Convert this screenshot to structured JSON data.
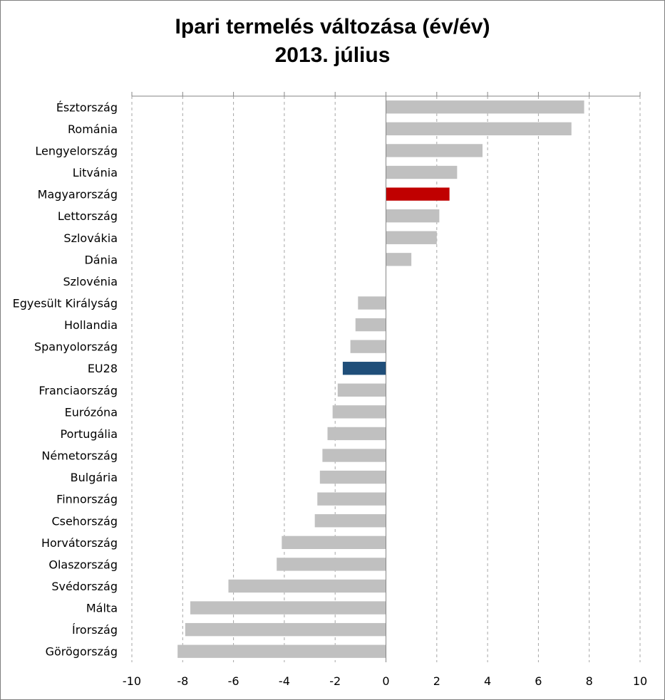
{
  "chart_data": {
    "type": "bar",
    "orientation": "horizontal",
    "title": "Ipari termelés változása (év/év)",
    "subtitle": "2013. július",
    "categories": [
      "Észtország",
      "Románia",
      "Lengyelország",
      "Litvánia",
      "Magyarország",
      "Lettország",
      "Szlovákia",
      "Dánia",
      "Szlovénia",
      "Egyesült Királyság",
      "Hollandia",
      "Spanyolország",
      "EU28",
      "Franciaország",
      "Eurózóna",
      "Portugália",
      "Németország",
      "Bulgária",
      "Finnország",
      "Csehország",
      "Horvátország",
      "Olaszország",
      "Svédország",
      "Málta",
      "Írország",
      "Görögország"
    ],
    "values": [
      7.8,
      7.3,
      3.8,
      2.8,
      2.5,
      2.1,
      2.0,
      1.0,
      0.0,
      -1.1,
      -1.2,
      -1.4,
      -1.7,
      -1.9,
      -2.1,
      -2.3,
      -2.5,
      -2.6,
      -2.7,
      -2.8,
      -4.1,
      -4.3,
      -6.2,
      -7.7,
      -7.9,
      -8.2
    ],
    "highlight": {
      "Magyarország": "#c00000",
      "EU28": "#1f4e79"
    },
    "default_color": "#c0c0c0",
    "xlim": [
      -10,
      10
    ],
    "xticks": [
      -10,
      -8,
      -6,
      -4,
      -2,
      0,
      2,
      4,
      6,
      8,
      10
    ],
    "grid": "vertical dashed",
    "legend": "none",
    "xlabel": "",
    "ylabel": ""
  }
}
